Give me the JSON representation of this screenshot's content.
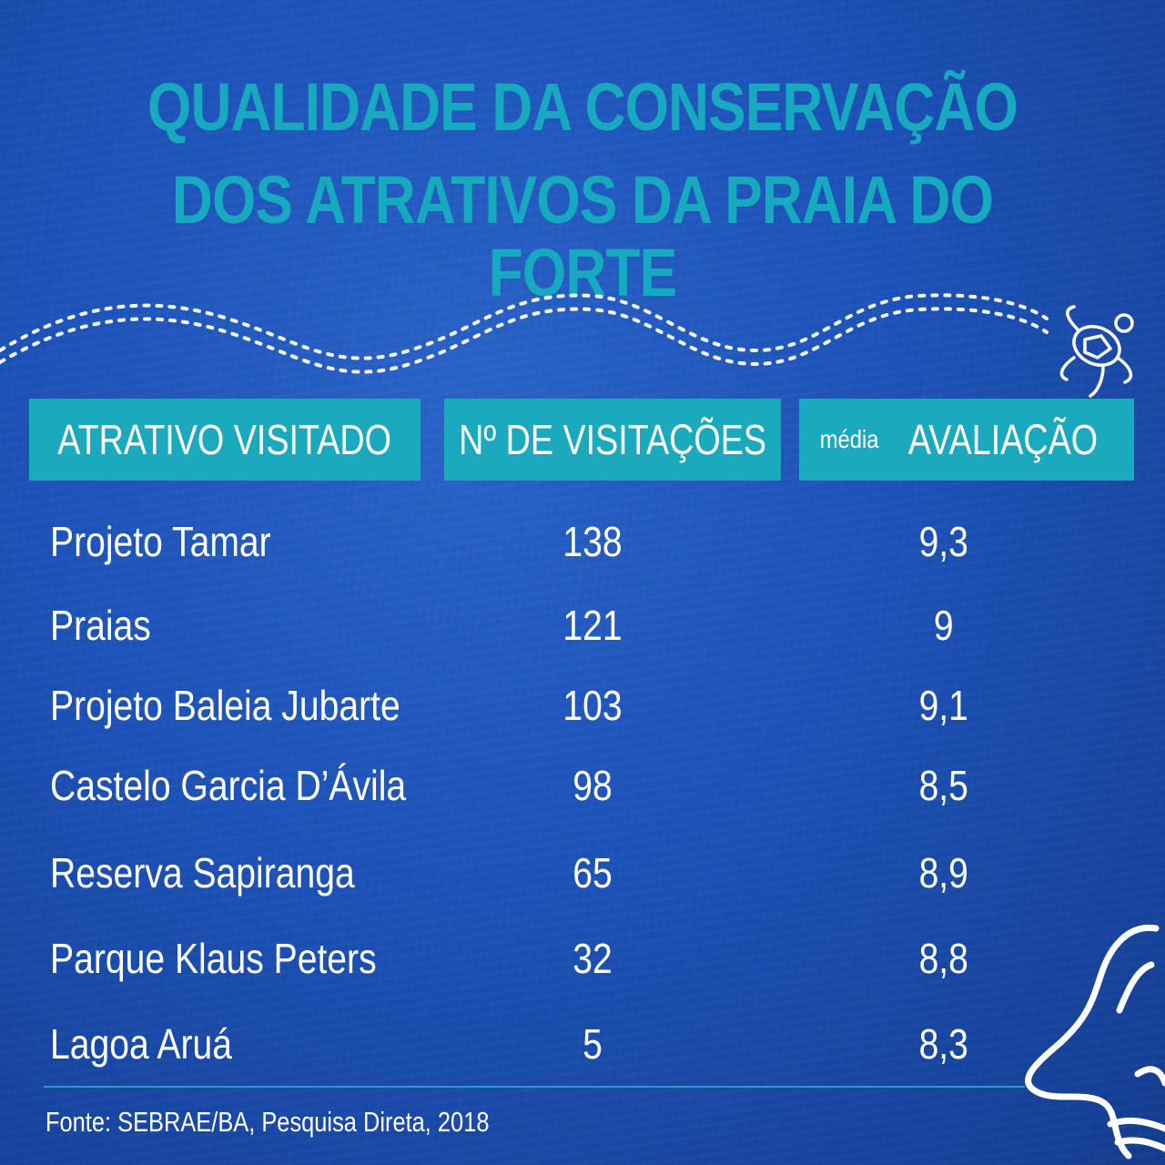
{
  "title": {
    "line1": "QUALIDADE DA CONSERVAÇÃO",
    "line2": "DOS ATRATIVOS DA PRAIA DO FORTE"
  },
  "table": {
    "headers": {
      "col1": "ATRATIVO VISITADO",
      "col2": "Nº DE VISITAÇÕES",
      "col3_small": "média",
      "col3": "AVALIAÇÃO"
    },
    "rows": [
      {
        "name": "Projeto Tamar",
        "visits": "138",
        "rating": "9,3"
      },
      {
        "name": "Praias",
        "visits": "121",
        "rating": "9"
      },
      {
        "name": "Projeto Baleia Jubarte",
        "visits": "103",
        "rating": "9,1"
      },
      {
        "name": "Castelo Garcia D’Ávila",
        "visits": "98",
        "rating": "8,5"
      },
      {
        "name": "Reserva Sapiranga",
        "visits": "65",
        "rating": "8,9"
      },
      {
        "name": "Parque Klaus Peters",
        "visits": "32",
        "rating": "8,8"
      },
      {
        "name": "Lagoa Aruá",
        "visits": "5",
        "rating": "8,3"
      }
    ]
  },
  "source": "Fonte: SEBRAE/BA, Pesquisa Direta, 2018",
  "colors": {
    "accent": "#1aa9bd",
    "title": "#16a9c0",
    "background": "#1d52b8",
    "text": "#ffffff"
  },
  "icons": [
    "turtle-track-icon",
    "turtle-icon",
    "turtle-flipper-icon"
  ]
}
